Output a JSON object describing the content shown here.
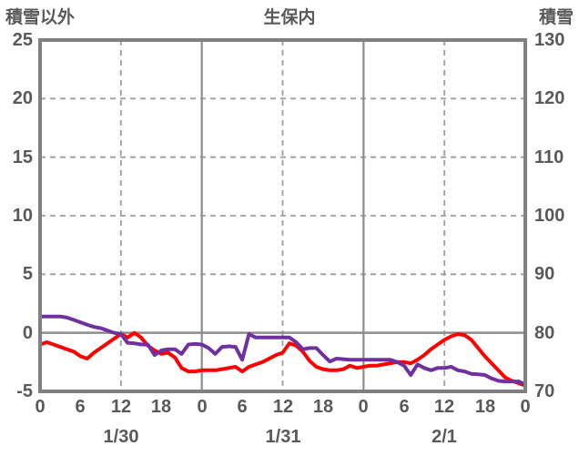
{
  "header": {
    "left_axis_title": "積雪以外",
    "chart_title": "生保内",
    "right_axis_title": "積雪"
  },
  "colors": {
    "red_series": "#fe0000",
    "purple_series": "#7030a0",
    "border": "#808080",
    "grid_dashed": "#9e9e9e",
    "grid_solid": "#8c8c8c",
    "text": "#595959",
    "background": "#ffffff"
  },
  "chart_data": {
    "type": "line",
    "title": "生保内",
    "legend": "none",
    "x_axis": {
      "unit": "hour",
      "span_hours": 72,
      "tick_interval_hours": 6,
      "tick_labels": [
        "0",
        "6",
        "12",
        "18",
        "0",
        "6",
        "12",
        "18",
        "0",
        "6",
        "12",
        "18",
        "0"
      ],
      "date_labels": [
        "1/30",
        "1/31",
        "2/1"
      ],
      "date_center_hours": [
        12,
        36,
        60
      ]
    },
    "left_axis": {
      "title": "積雪以外",
      "min": -5,
      "max": 25,
      "step": 5,
      "ticks": [
        25,
        20,
        15,
        10,
        5,
        0,
        -5
      ]
    },
    "right_axis": {
      "title": "積雪",
      "min": 70,
      "max": 130,
      "step": 10,
      "ticks": [
        130,
        120,
        110,
        100,
        90,
        80,
        70
      ]
    },
    "grid": {
      "horizontal_dashed_at_left_values": [
        20,
        15,
        10,
        5
      ],
      "horizontal_solid_at_left_values": [
        0
      ],
      "vertical_dashed_at_hours": [
        12,
        36,
        60
      ],
      "vertical_solid_at_hours": [
        24,
        48
      ]
    },
    "series": [
      {
        "name": "積雪以外",
        "axis": "left",
        "color": "#fe0000",
        "values": [
          -1.0,
          -0.8,
          -1.0,
          -1.2,
          -1.4,
          -1.6,
          -2.0,
          -2.2,
          -1.7,
          -1.3,
          -0.9,
          -0.5,
          -0.1,
          -0.4,
          0.0,
          -0.4,
          -1.1,
          -1.5,
          -1.8,
          -1.7,
          -2.1,
          -3.0,
          -3.3,
          -3.3,
          -3.2,
          -3.2,
          -3.2,
          -3.1,
          -3.0,
          -2.9,
          -3.3,
          -2.9,
          -2.7,
          -2.5,
          -2.2,
          -1.9,
          -1.7,
          -0.9,
          -1.1,
          -1.6,
          -2.4,
          -2.9,
          -3.1,
          -3.2,
          -3.2,
          -3.1,
          -2.8,
          -3.0,
          -2.9,
          -2.8,
          -2.8,
          -2.7,
          -2.6,
          -2.5,
          -2.5,
          -2.6,
          -2.3,
          -1.9,
          -1.4,
          -1.0,
          -0.6,
          -0.3,
          -0.1,
          -0.2,
          -0.6,
          -1.3,
          -2.0,
          -2.6,
          -3.2,
          -3.8,
          -4.1,
          -4.3,
          -4.5
        ]
      },
      {
        "name": "積雪",
        "axis": "right",
        "color": "#7030a0",
        "values": [
          82.8,
          82.8,
          82.8,
          82.8,
          82.6,
          82.2,
          81.8,
          81.4,
          81.0,
          80.8,
          80.4,
          80.0,
          79.8,
          78.3,
          78.2,
          78.0,
          78.0,
          76.2,
          77.0,
          77.2,
          77.2,
          76.4,
          78.0,
          78.1,
          78.0,
          77.4,
          76.4,
          77.6,
          77.7,
          77.6,
          75.4,
          79.8,
          79.2,
          79.2,
          79.2,
          79.2,
          79.2,
          79.2,
          78.4,
          77.2,
          77.4,
          77.4,
          76.2,
          75.1,
          75.6,
          75.5,
          75.4,
          75.4,
          75.4,
          75.4,
          75.4,
          75.4,
          75.4,
          75.0,
          74.4,
          72.8,
          74.6,
          74.0,
          73.6,
          74.0,
          74.0,
          74.2,
          73.6,
          73.4,
          73.0,
          72.9,
          72.8,
          72.2,
          71.8,
          71.7,
          71.7,
          71.7,
          71.2
        ]
      }
    ]
  }
}
